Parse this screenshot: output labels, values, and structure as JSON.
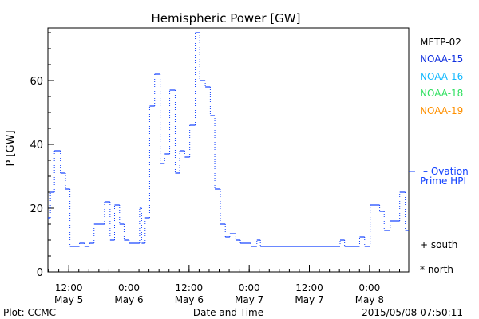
{
  "chart_data": {
    "type": "line",
    "title": "Hemispheric Power [GW]",
    "xlabel": "Date and Time",
    "ylabel": "P [GW]",
    "ylim": [
      0,
      76.5
    ],
    "xlim_hours": [
      0,
      72
    ],
    "start_time": "2015/05/05 07:50",
    "yticks": [
      0,
      20,
      40,
      60
    ],
    "xticks": [
      {
        "h": 4.17,
        "time": "12:00",
        "date": "May 5"
      },
      {
        "h": 16.17,
        "time": "0:00",
        "date": "May 6"
      },
      {
        "h": 28.17,
        "time": "12:00",
        "date": "May 6"
      },
      {
        "h": 40.17,
        "time": "0:00",
        "date": "May 7"
      },
      {
        "h": 52.17,
        "time": "12:00",
        "date": "May 7"
      },
      {
        "h": 64.17,
        "time": "0:00",
        "date": "May 8"
      }
    ],
    "series": [
      {
        "name": "Ovation Prime HPI",
        "color": "#1040ff",
        "steps": [
          [
            0,
            17
          ],
          [
            0.5,
            25
          ],
          [
            1.3,
            38
          ],
          [
            2.5,
            31
          ],
          [
            3.5,
            26
          ],
          [
            4.4,
            8
          ],
          [
            6.3,
            9
          ],
          [
            7.3,
            8
          ],
          [
            8.3,
            9
          ],
          [
            9.2,
            15
          ],
          [
            11.3,
            22
          ],
          [
            12.4,
            10
          ],
          [
            13.3,
            21
          ],
          [
            14.3,
            15
          ],
          [
            15.2,
            10
          ],
          [
            16.2,
            9
          ],
          [
            18.3,
            20
          ],
          [
            18.7,
            9
          ],
          [
            19.4,
            17
          ],
          [
            20.3,
            52
          ],
          [
            21.3,
            62
          ],
          [
            22.4,
            34
          ],
          [
            23.3,
            37
          ],
          [
            24.3,
            57
          ],
          [
            25.4,
            31
          ],
          [
            26.3,
            38
          ],
          [
            27.3,
            36
          ],
          [
            28.3,
            46
          ],
          [
            29.4,
            75
          ],
          [
            30.3,
            60
          ],
          [
            31.4,
            58
          ],
          [
            32.4,
            49
          ],
          [
            33.3,
            26
          ],
          [
            34.4,
            15
          ],
          [
            35.4,
            11
          ],
          [
            36.3,
            12
          ],
          [
            37.5,
            10
          ],
          [
            38.4,
            9
          ],
          [
            40.5,
            8
          ],
          [
            41.7,
            10
          ],
          [
            42.4,
            8
          ],
          [
            58.3,
            10
          ],
          [
            59.2,
            8
          ],
          [
            62.2,
            11
          ],
          [
            63.2,
            8
          ],
          [
            64.3,
            21
          ],
          [
            66.2,
            19
          ],
          [
            67.1,
            13
          ],
          [
            68.3,
            16
          ],
          [
            70.2,
            25
          ],
          [
            71.3,
            13
          ]
        ]
      }
    ]
  },
  "legend": {
    "satellites": [
      {
        "label": "METP-02",
        "color": "#000000"
      },
      {
        "label": "NOAA-15",
        "color": "#1030e0"
      },
      {
        "label": "NOAA-16",
        "color": "#10b8ff"
      },
      {
        "label": "NOAA-18",
        "color": "#30e060"
      },
      {
        "label": "NOAA-19",
        "color": "#ff9000"
      }
    ],
    "model_line1": "– Ovation",
    "model_line2": "Prime HPI",
    "south": "+ south",
    "north": "* north"
  },
  "footer": {
    "credit": "Plot: CCMC",
    "timestamp": "2015/05/08 07:50:11"
  }
}
